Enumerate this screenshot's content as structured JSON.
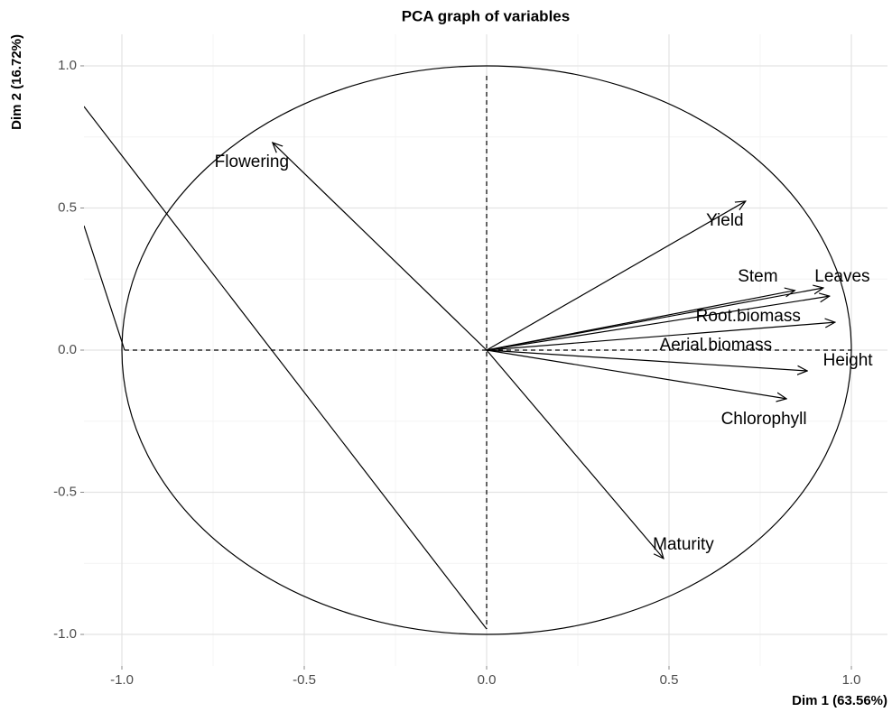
{
  "chart_data": {
    "type": "pca_variables",
    "title": "PCA graph of variables",
    "x_label": "Dim 1 (63.56%)",
    "y_label": "Dim 2 (16.72%)",
    "xlim": [
      -1.104,
      1.099
    ],
    "ylim": [
      -1.111,
      1.111
    ],
    "xticks": [
      {
        "value": -1,
        "label": "-1.0"
      },
      -0.5,
      {
        "value": 0,
        "label": "0.0"
      },
      0.5,
      {
        "value": 1,
        "label": "1.0"
      }
    ],
    "yticks": [
      {
        "value": -1,
        "label": "-1.0"
      },
      -0.5,
      {
        "value": 0,
        "label": "0.0"
      },
      0.5,
      {
        "value": 1,
        "label": "1.0"
      }
    ],
    "grid": true,
    "color": "#000000",
    "variables": [
      "Flowering",
      "Yield",
      "Stem",
      "Leaves",
      "Root.biomass",
      "Aerial.biomass",
      "Height",
      "Chlorophyll",
      "Maturity"
    ],
    "x": [
      -0.587,
      0.71,
      0.845,
      0.923,
      0.94,
      0.955,
      0.879,
      0.822,
      0.485
    ],
    "y": [
      0.73,
      0.524,
      0.21,
      0.219,
      0.19,
      0.098,
      -0.073,
      -0.171,
      -0.733
    ]
  }
}
